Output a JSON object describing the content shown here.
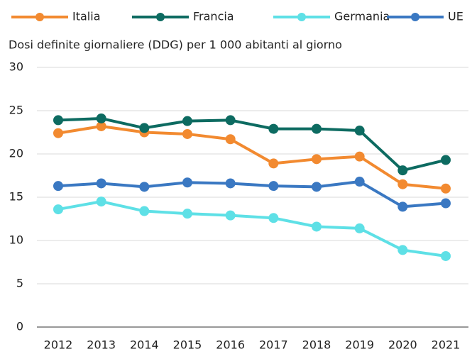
{
  "chart_data": {
    "type": "line",
    "ylabel": "Dosi definite giornaliere (DDG) per 1 000 abitanti al giorno",
    "categories": [
      "2012",
      "2013",
      "2014",
      "2015",
      "2016",
      "2017",
      "2018",
      "2019",
      "2020",
      "2021"
    ],
    "series": [
      {
        "name": "Italia",
        "color": "#f28a30",
        "values": [
          22.4,
          23.2,
          22.5,
          22.3,
          21.7,
          18.9,
          19.4,
          19.7,
          16.5,
          16.0
        ]
      },
      {
        "name": "Francia",
        "color": "#0d6b61",
        "values": [
          23.9,
          24.1,
          23.0,
          23.8,
          23.9,
          22.9,
          22.9,
          22.7,
          18.1,
          19.3
        ]
      },
      {
        "name": "Germania",
        "color": "#5ee0e6",
        "values": [
          13.6,
          14.5,
          13.4,
          13.1,
          12.9,
          12.6,
          11.6,
          11.4,
          8.9,
          8.2
        ]
      },
      {
        "name": "UE",
        "color": "#3a78c2",
        "values": [
          16.3,
          16.6,
          16.2,
          16.7,
          16.6,
          16.3,
          16.2,
          16.8,
          13.9,
          14.3
        ]
      }
    ],
    "ylim": [
      0,
      30
    ],
    "yticks": [
      0,
      5,
      10,
      15,
      20,
      25,
      30
    ],
    "grid": true,
    "legend": "top"
  }
}
